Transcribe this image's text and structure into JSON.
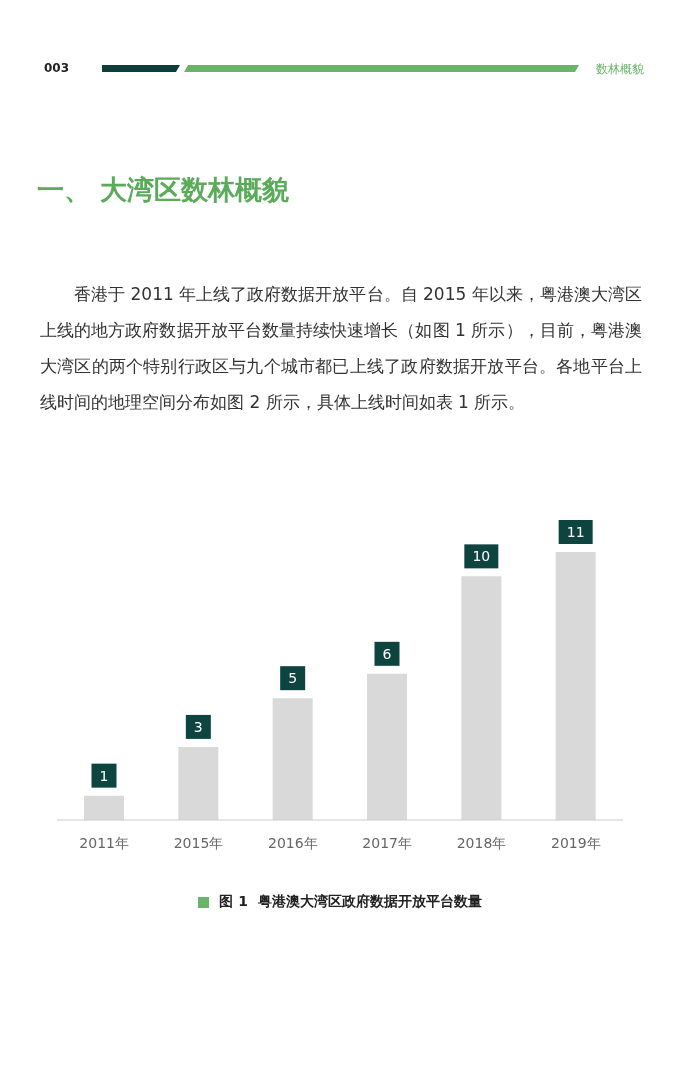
{
  "chart_data": {
    "type": "bar",
    "title": "图 1  粤港澳大湾区政府数据开放平台数量",
    "categories": [
      "2011年",
      "2015年",
      "2016年",
      "2017年",
      "2018年",
      "2019年"
    ],
    "values": [
      1,
      3,
      5,
      6,
      10,
      11
    ],
    "color": "#d9d9d9",
    "data_labels": true,
    "grid": false,
    "legend": false,
    "annotations": [
      "003",
      "数林概貌",
      "一、 大湾区数林概貌",
      "香港于 2011 年上线了政府数据开放平台。自 2015 年以来，粤港澳大湾区上线的地方政府数据开放平台数量持续快速增长（如图 1 所示），目前，粤港澳大湾区的两个特别行政区与九个城市都已上线了政府数据开放平台。各地平台上线时间的地理空间分布如图 2 所示，具体上线时间如表 1 所示。"
    ]
  }
}
